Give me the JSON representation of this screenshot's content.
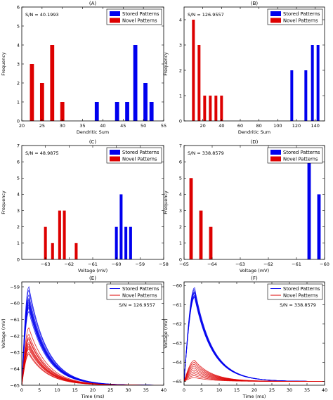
{
  "legend_labels": [
    "Stored Patterns",
    "Novel Patterns"
  ],
  "colors": {
    "stored": "#0000ee",
    "novel": "#dd0000"
  },
  "chart_data": [
    {
      "id": "A",
      "type": "bar",
      "title": "(A)",
      "xlabel": "Dendritic Sum",
      "ylabel": "Frequency",
      "annotation": "S/N = 40.1993",
      "xlim": [
        20,
        55
      ],
      "ylim": [
        0,
        6
      ],
      "bar_width": 1.0,
      "xticks": [
        20,
        25,
        30,
        35,
        40,
        45,
        50,
        55
      ],
      "yticks": [
        0,
        1,
        2,
        3,
        4,
        5,
        6
      ],
      "series": [
        {
          "name": "Stored Patterns",
          "color": "#0000ee",
          "x": [
            38.5,
            43.5,
            46,
            48,
            50.5,
            52
          ],
          "values": [
            1,
            1,
            1,
            4,
            2,
            1
          ]
        },
        {
          "name": "Novel Patterns",
          "color": "#dd0000",
          "x": [
            22.5,
            25,
            27.5,
            30
          ],
          "values": [
            3,
            2,
            4,
            1
          ]
        }
      ]
    },
    {
      "id": "B",
      "type": "bar",
      "title": "(B)",
      "xlabel": "Dendritic Sum",
      "ylabel": "Frequency",
      "annotation": "S/N = 126.9557",
      "xlim": [
        0,
        150
      ],
      "ylim": [
        0,
        4.5
      ],
      "bar_width": 3.0,
      "xticks": [
        20,
        40,
        60,
        80,
        100,
        120,
        140
      ],
      "yticks": [
        0,
        1,
        2,
        3,
        4
      ],
      "series": [
        {
          "name": "Stored Patterns",
          "color": "#0000ee",
          "x": [
            115,
            130,
            137,
            143
          ],
          "values": [
            2,
            2,
            3,
            3
          ]
        },
        {
          "name": "Novel Patterns",
          "color": "#dd0000",
          "x": [
            10,
            16,
            22,
            28,
            34,
            40
          ],
          "values": [
            4,
            3,
            1,
            1,
            1,
            1
          ]
        }
      ]
    },
    {
      "id": "C",
      "type": "bar",
      "title": "(C)",
      "xlabel": "Voltage (mV)",
      "ylabel": "Frequency",
      "annotation": "S/N = 48.9875",
      "xlim": [
        -64,
        -58
      ],
      "ylim": [
        0,
        7
      ],
      "bar_width": 0.12,
      "xticks": [
        -63,
        -62,
        -61,
        -60,
        -59,
        -58
      ],
      "yticks": [
        0,
        1,
        2,
        3,
        4,
        5,
        6,
        7
      ],
      "series": [
        {
          "name": "Stored Patterns",
          "color": "#0000ee",
          "x": [
            -60.0,
            -59.8,
            -59.6,
            -59.4
          ],
          "values": [
            2,
            4,
            2,
            2
          ]
        },
        {
          "name": "Novel Patterns",
          "color": "#dd0000",
          "x": [
            -63.0,
            -62.7,
            -62.4,
            -62.2,
            -61.7
          ],
          "values": [
            2,
            1,
            3,
            3,
            1
          ]
        }
      ]
    },
    {
      "id": "D",
      "type": "bar",
      "title": "(D)",
      "xlabel": "Voltage (mV)",
      "ylabel": "Frequency",
      "annotation": "S/N = 338.8579",
      "xlim": [
        -65,
        -60
      ],
      "ylim": [
        0,
        7
      ],
      "bar_width": 0.12,
      "xticks": [
        -65,
        -64,
        -63,
        -62,
        -61,
        -60
      ],
      "yticks": [
        0,
        1,
        2,
        3,
        4,
        5,
        6,
        7
      ],
      "series": [
        {
          "name": "Stored Patterns",
          "color": "#0000ee",
          "x": [
            -60.55,
            -60.2
          ],
          "values": [
            6,
            4
          ]
        },
        {
          "name": "Novel Patterns",
          "color": "#dd0000",
          "x": [
            -64.75,
            -64.4,
            -64.05
          ],
          "values": [
            5,
            3,
            2
          ]
        }
      ]
    },
    {
      "id": "E",
      "type": "line",
      "title": "(E)",
      "xlabel": "Time (ms)",
      "ylabel": "Voltage (mV)",
      "annotation": "S/N = 126.9557",
      "xlim": [
        0,
        40
      ],
      "ylim": [
        -65,
        -58.7
      ],
      "xticks": [
        0,
        5,
        10,
        15,
        20,
        25,
        30,
        35,
        40
      ],
      "yticks": [
        -65,
        -64,
        -63,
        -62,
        -61,
        -60,
        -59
      ],
      "curve_shape": {
        "t_peak_ms": 2,
        "decay_ms": 5.2,
        "baseline_mv": -65
      },
      "series": [
        {
          "name": "Stored Patterns",
          "color": "#0000ee",
          "peaks_mv": [
            -59.0,
            -59.2,
            -59.5,
            -59.7,
            -59.8,
            -59.9,
            -60.0,
            -60.1,
            -60.2,
            -60.3,
            -60.5
          ]
        },
        {
          "name": "Novel Patterns",
          "color": "#dd0000",
          "peaks_mv": [
            -61.5,
            -61.9,
            -62.1,
            -62.2,
            -62.4,
            -62.5,
            -62.6,
            -62.7,
            -62.8,
            -63.0,
            -63.1
          ]
        }
      ]
    },
    {
      "id": "F",
      "type": "line",
      "title": "(F)",
      "xlabel": "Time (ms)",
      "ylabel": "Voltage (mV)",
      "annotation": "S/N = 338.8579",
      "xlim": [
        0,
        40
      ],
      "ylim": [
        -65.2,
        -59.8
      ],
      "xticks": [
        0,
        5,
        10,
        15,
        20,
        25,
        30,
        35,
        40
      ],
      "yticks": [
        -65,
        -64,
        -63,
        -62,
        -61,
        -60
      ],
      "curve_shape": {
        "t_peak_ms": 3,
        "decay_ms": 5.0,
        "baseline_mv": -65
      },
      "series": [
        {
          "name": "Stored Patterns",
          "color": "#0000ee",
          "peaks_mv": [
            -60.1,
            -60.2,
            -60.3,
            -60.35,
            -60.4,
            -60.5,
            -60.55,
            -60.6
          ]
        },
        {
          "name": "Novel Patterns",
          "color": "#dd0000",
          "peaks_mv": [
            -63.9,
            -64.0,
            -64.1,
            -64.2,
            -64.3,
            -64.4,
            -64.5,
            -64.6,
            -64.7,
            -64.8
          ]
        }
      ]
    }
  ]
}
